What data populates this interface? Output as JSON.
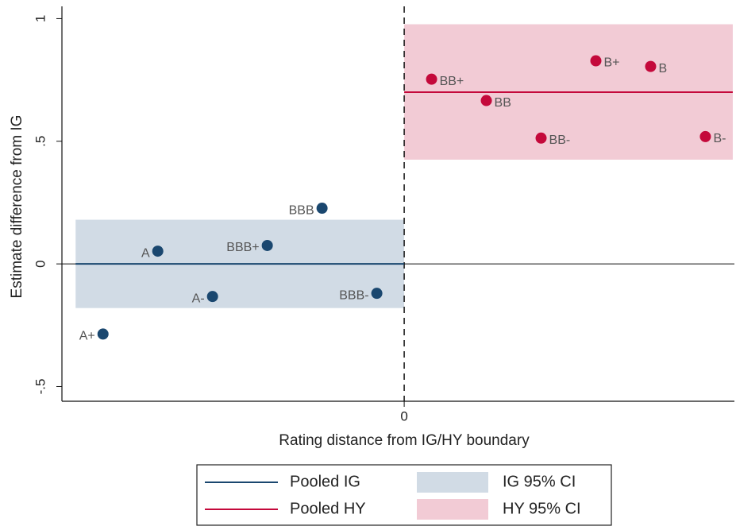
{
  "chart_data": {
    "type": "scatter",
    "x_label": "Rating distance from IG/HY boundary",
    "y_label": "Estimate difference from IG",
    "x": [
      -5.5,
      -4.5,
      -3.5,
      -2.5,
      -1.5,
      -0.5,
      0.5,
      1.5,
      2.5,
      3.5,
      4.5,
      5.5
    ],
    "values": [
      -0.286,
      0.052,
      -0.133,
      0.075,
      0.227,
      -0.12,
      0.753,
      0.666,
      0.513,
      0.828,
      0.805,
      0.519
    ],
    "point_labels": [
      "A+",
      "A",
      "A-",
      "BBB+",
      "BBB",
      "BBB-",
      "BB+",
      "BB",
      "BB-",
      "B+",
      "B",
      "B-"
    ],
    "point_colors": [
      "#1a476f",
      "#1a476f",
      "#1a476f",
      "#1a476f",
      "#1a476f",
      "#1a476f",
      "#c4093b",
      "#c4093b",
      "#c4093b",
      "#c4093b",
      "#c4093b",
      "#c4093b"
    ],
    "pooled": [
      {
        "name": "Pooled IG",
        "color": "#1a476f",
        "value": 0,
        "x_range": [
          -6,
          0
        ]
      },
      {
        "name": "Pooled HY",
        "color": "#c4093b",
        "value": 0.7,
        "x_range": [
          0,
          6
        ]
      }
    ],
    "ci": [
      {
        "name": "IG 95% CI",
        "color": "#d1dbe5",
        "lower": -0.18,
        "upper": 0.18,
        "x_range": [
          -6,
          0
        ]
      },
      {
        "name": "HY 95% CI",
        "color": "#f2cbd5",
        "lower": 0.425,
        "upper": 0.977,
        "x_range": [
          0,
          6
        ]
      }
    ],
    "vline_x": 0,
    "hline_y": 0,
    "xlim": [
      -6.25,
      6.03
    ],
    "ylim": [
      -0.56,
      1.05
    ],
    "xticks": [
      0
    ],
    "yticks": [
      {
        "value": -0.5,
        "label": "-.5"
      },
      0,
      {
        "value": 0.5,
        "label": ".5"
      },
      1
    ]
  }
}
